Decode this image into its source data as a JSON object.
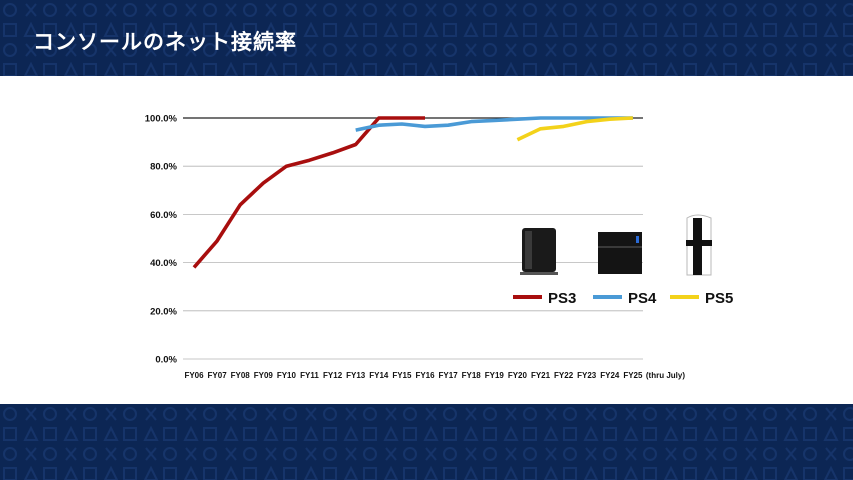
{
  "header": {
    "title": "コンソールのネット接続率"
  },
  "chart_data": {
    "type": "line",
    "title": "コンソールのネット接続率",
    "xlabel": "",
    "ylabel": "",
    "ylim": [
      0,
      100
    ],
    "yticks": [
      "0.0%",
      "20.0%",
      "40.0%",
      "60.0%",
      "80.0%",
      "100.0%"
    ],
    "categories": [
      "FY06",
      "FY07",
      "FY08",
      "FY09",
      "FY10",
      "FY11",
      "FY12",
      "FY13",
      "FY14",
      "FY15",
      "FY16",
      "FY17",
      "FY18",
      "FY19",
      "FY20",
      "FY21",
      "FY22",
      "FY23",
      "FY24",
      "FY25"
    ],
    "x_note": "(thru July)",
    "grid": true,
    "legend": "right",
    "series": [
      {
        "name": "PS3",
        "color": "#a80e0e",
        "values": [
          38,
          49,
          64,
          73,
          80,
          82.5,
          85.5,
          89,
          100,
          100,
          100,
          null,
          null,
          null,
          null,
          null,
          null,
          null,
          null,
          null
        ]
      },
      {
        "name": "PS4",
        "color": "#4a9ad6",
        "values": [
          null,
          null,
          null,
          null,
          null,
          null,
          null,
          95,
          97,
          97.5,
          96.5,
          97,
          98.5,
          99,
          99.5,
          100,
          100,
          100,
          100,
          100
        ]
      },
      {
        "name": "PS5",
        "color": "#f3d21a",
        "values": [
          null,
          null,
          null,
          null,
          null,
          null,
          null,
          null,
          null,
          null,
          null,
          null,
          null,
          null,
          91,
          95.5,
          96.5,
          98.5,
          99.5,
          100
        ]
      }
    ]
  }
}
